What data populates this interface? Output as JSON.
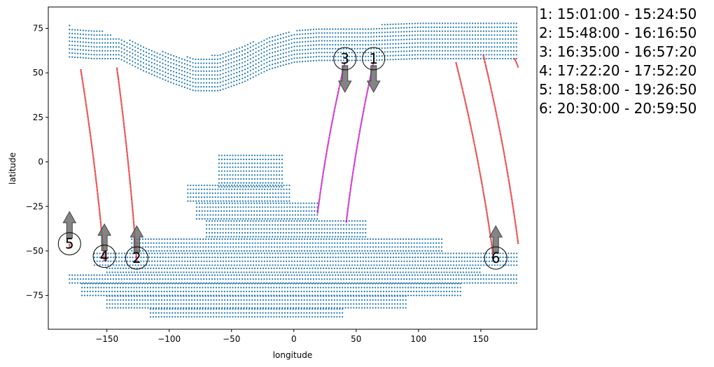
{
  "chart_data": {
    "type": "scatter",
    "xlabel": "longitude",
    "ylabel": "latitude",
    "xlim": [
      -197,
      195
    ],
    "ylim": [
      -94,
      87
    ],
    "x_ticks": [
      -150,
      -100,
      -50,
      0,
      50,
      100,
      150
    ],
    "x_tick_labels": [
      "−150",
      "−100",
      "−50",
      "0",
      "50",
      "100",
      "150"
    ],
    "y_ticks": [
      -75,
      -50,
      -25,
      0,
      25,
      50,
      75
    ],
    "y_tick_labels": [
      "−75",
      "−50",
      "−25",
      "0",
      "25",
      "50",
      "75"
    ],
    "colors": {
      "region": "#1f77b4",
      "track_red": "#e41a1c",
      "track_magenta": "#bf00bf",
      "arrow": "#6e6e6e"
    },
    "region_north": {
      "lon_range": [
        -180,
        180
      ],
      "top_lat": [
        [
          -180,
          77
        ],
        [
          -175,
          75
        ],
        [
          -155,
          74
        ],
        [
          -145,
          71
        ],
        [
          -130,
          68
        ],
        [
          -110,
          63
        ],
        [
          -90,
          59
        ],
        [
          -70,
          59
        ],
        [
          -50,
          64
        ],
        [
          -30,
          68
        ],
        [
          -10,
          72
        ],
        [
          10,
          75
        ],
        [
          40,
          76
        ],
        [
          60,
          76
        ],
        [
          80,
          78
        ],
        [
          100,
          79
        ],
        [
          130,
          79
        ],
        [
          180,
          78
        ]
      ],
      "bottom_lat": [
        [
          -180,
          59
        ],
        [
          -160,
          58
        ],
        [
          -140,
          58
        ],
        [
          -120,
          51
        ],
        [
          -100,
          45
        ],
        [
          -80,
          40
        ],
        [
          -60,
          40
        ],
        [
          -40,
          45
        ],
        [
          -20,
          52
        ],
        [
          0,
          56
        ],
        [
          20,
          57
        ],
        [
          60,
          57
        ],
        [
          100,
          58
        ],
        [
          140,
          58
        ],
        [
          180,
          58
        ]
      ]
    },
    "region_south": {
      "segments": [
        {
          "lat_range": [
            -14,
            4
          ],
          "lon_range": [
            -60,
            -8
          ]
        },
        {
          "lat_range": [
            -22,
            -13
          ],
          "lon_range": [
            -85,
            -2
          ]
        },
        {
          "lat_range": [
            -32,
            -22
          ],
          "lon_range": [
            -78,
            20
          ]
        },
        {
          "lat_range": [
            -42,
            -32
          ],
          "lon_range": [
            -70,
            58
          ]
        },
        {
          "lat_range": [
            -50,
            -42
          ],
          "lon_range": [
            -130,
            120
          ]
        },
        {
          "lat_range": [
            -58,
            -50
          ],
          "lon_range": [
            -160,
            180
          ]
        },
        {
          "lat_range": [
            -62,
            -58
          ],
          "lon_range": [
            -150,
            150
          ]
        },
        {
          "lat_range": [
            -68,
            -62
          ],
          "lon_range": [
            -180,
            180
          ]
        },
        {
          "lat_range": [
            -75,
            -68
          ],
          "lon_range": [
            -170,
            135
          ]
        },
        {
          "lat_range": [
            -82,
            -75
          ],
          "lon_range": [
            -150,
            90
          ]
        },
        {
          "lat_range": [
            -87,
            -82
          ],
          "lon_range": [
            -115,
            40
          ]
        }
      ]
    },
    "tracks": [
      {
        "id": "1",
        "color": "magenta",
        "start": [
          64,
          56
        ],
        "end": [
          42,
          -34
        ]
      },
      {
        "id": "2",
        "color": "red",
        "start": [
          -142,
          53
        ],
        "end": [
          -126,
          -56
        ]
      },
      {
        "id": "3",
        "color": "magenta",
        "start": [
          41,
          56
        ],
        "end": [
          19,
          -29
        ]
      },
      {
        "id": "4",
        "color": "red",
        "start": [
          -171,
          52
        ],
        "end": [
          -152,
          -56
        ]
      },
      {
        "id": "5",
        "color": "red",
        "start": [
          -180,
          -46
        ],
        "end": [
          -180,
          -48
        ]
      },
      {
        "id": "6",
        "color": "red",
        "start": [
          152,
          60
        ],
        "end": [
          180,
          -46
        ]
      },
      {
        "id": "6b",
        "color": "red",
        "start": [
          130,
          56
        ],
        "end": [
          160,
          -53
        ]
      },
      {
        "id": "6c",
        "color": "red",
        "start": [
          177,
          58
        ],
        "end": [
          180,
          53
        ]
      }
    ],
    "pass_markers": [
      {
        "label": "1",
        "lon": 64,
        "lat": 58,
        "arrow": "down"
      },
      {
        "label": "2",
        "lon": -126,
        "lat": -54,
        "arrow": "up"
      },
      {
        "label": "3",
        "lon": 41,
        "lat": 58,
        "arrow": "down"
      },
      {
        "label": "4",
        "lon": -152,
        "lat": -53,
        "arrow": "up"
      },
      {
        "label": "5",
        "lon": -180,
        "lat": -46,
        "arrow": "up"
      },
      {
        "label": "6",
        "lon": 162,
        "lat": -54,
        "arrow": "up"
      }
    ],
    "legend": [
      "1:  15:01:00 - 15:24:50",
      "2:  15:48:00 - 16:16:50",
      "3:  16:35:00 - 16:57:20",
      "4:  17:22:20 - 17:52:20",
      "5:  18:58:00 - 19:26:50",
      "6:  20:30:00 - 20:59:50"
    ]
  }
}
